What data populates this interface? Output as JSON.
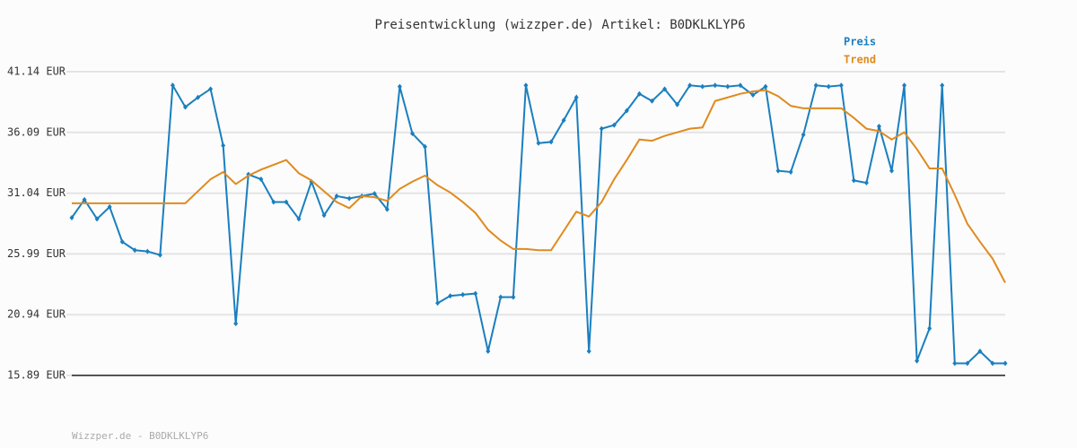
{
  "chart_data": {
    "type": "line",
    "title": "Preisentwicklung (wizzper.de) Artikel: B0DKLKLYP6",
    "footer": "Wizzper.de - B0DKLKLYP6",
    "ylim": [
      15.89,
      41.14
    ],
    "yticks": [
      {
        "value": 15.89,
        "label": "15.89 EUR"
      },
      {
        "value": 20.94,
        "label": "20.94 EUR"
      },
      {
        "value": 25.99,
        "label": "25.99 EUR"
      },
      {
        "value": 31.04,
        "label": "31.04 EUR"
      },
      {
        "value": 36.09,
        "label": "36.09 EUR"
      },
      {
        "value": 41.14,
        "label": "41.14 EUR"
      }
    ],
    "grid": true,
    "legend": "top-right",
    "series": [
      {
        "name": "Preis",
        "color": "#1a7fbf",
        "markers": true,
        "values": [
          29.0,
          30.5,
          28.9,
          29.9,
          27.0,
          26.3,
          26.2,
          25.9,
          40.0,
          38.2,
          39.0,
          39.7,
          35.0,
          20.2,
          32.6,
          32.2,
          30.3,
          30.3,
          28.9,
          32.0,
          29.2,
          30.8,
          30.6,
          30.8,
          31.0,
          29.7,
          39.9,
          36.0,
          34.9,
          21.9,
          22.5,
          22.6,
          22.7,
          17.9,
          22.4,
          22.4,
          40.0,
          35.2,
          35.3,
          37.1,
          39.0,
          17.9,
          36.4,
          36.7,
          37.9,
          39.3,
          38.7,
          39.7,
          38.4,
          40.0,
          39.9,
          40.0,
          39.9,
          40.0,
          39.2,
          39.9,
          32.9,
          32.8,
          35.9,
          40.0,
          39.9,
          40.0,
          32.1,
          31.9,
          36.6,
          32.9,
          40.0,
          17.1,
          19.8,
          40.0,
          16.9,
          16.9,
          17.9,
          16.9,
          16.9
        ]
      },
      {
        "name": "Trend",
        "color": "#e08a1e",
        "markers": false,
        "values": [
          30.2,
          30.2,
          30.2,
          30.2,
          30.2,
          30.2,
          30.2,
          30.2,
          30.2,
          30.2,
          31.2,
          32.2,
          32.8,
          31.8,
          32.5,
          33.0,
          33.4,
          33.8,
          32.7,
          32.1,
          31.2,
          30.3,
          29.8,
          30.8,
          30.7,
          30.4,
          31.4,
          32.0,
          32.5,
          31.7,
          31.1,
          30.3,
          29.4,
          28.0,
          27.1,
          26.4,
          26.4,
          26.3,
          26.3,
          27.9,
          29.5,
          29.1,
          30.3,
          32.2,
          33.8,
          35.5,
          35.4,
          35.8,
          36.1,
          36.4,
          36.5,
          38.7,
          39.0,
          39.3,
          39.5,
          39.6,
          39.1,
          38.3,
          38.1,
          38.1,
          38.1,
          38.1,
          37.3,
          36.4,
          36.2,
          35.5,
          36.1,
          34.7,
          33.1,
          33.1,
          30.9,
          28.5,
          27.0,
          25.6,
          23.6
        ]
      }
    ]
  }
}
